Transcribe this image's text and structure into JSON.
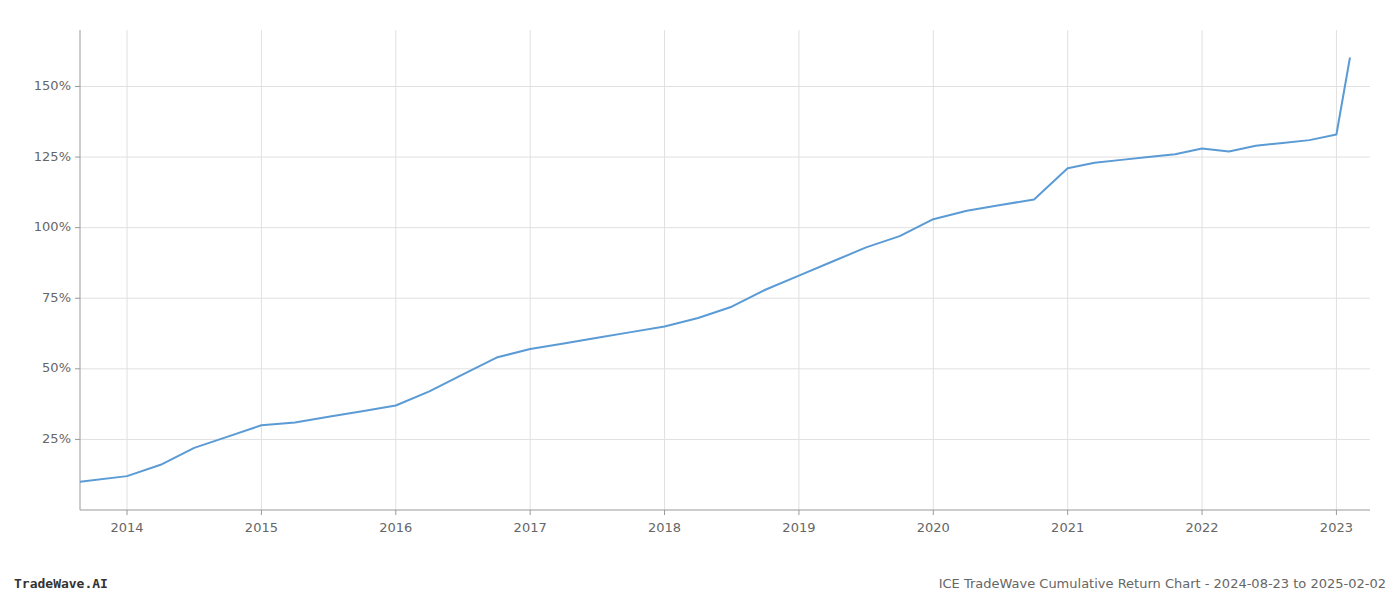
{
  "chart_data": {
    "type": "line",
    "title": "ICE TradeWave Cumulative Return Chart - 2024-08-23 to 2025-02-02",
    "annotations": [
      "TradeWave.AI"
    ],
    "x": [
      2013.65,
      2014.0,
      2014.25,
      2014.5,
      2014.75,
      2015.0,
      2015.25,
      2015.5,
      2015.75,
      2016.0,
      2016.25,
      2016.5,
      2016.75,
      2017.0,
      2017.25,
      2017.5,
      2017.75,
      2018.0,
      2018.25,
      2018.5,
      2018.75,
      2019.0,
      2019.25,
      2019.5,
      2019.75,
      2020.0,
      2020.25,
      2020.5,
      2020.75,
      2021.0,
      2021.2,
      2021.4,
      2021.6,
      2021.8,
      2022.0,
      2022.2,
      2022.4,
      2022.6,
      2022.8,
      2023.0,
      2023.1
    ],
    "values": [
      10,
      12,
      16,
      22,
      26,
      30,
      31,
      33,
      35,
      37,
      42,
      48,
      54,
      57,
      59,
      61,
      63,
      65,
      68,
      72,
      78,
      83,
      88,
      93,
      97,
      103,
      106,
      108,
      110,
      121,
      123,
      124,
      125,
      126,
      128,
      127,
      129,
      130,
      131,
      133,
      160
    ],
    "color": "#5b9bd5",
    "xlim": [
      2013.65,
      2023.25
    ],
    "ylim": [
      0,
      170
    ],
    "xticks": [
      2014,
      2015,
      2016,
      2017,
      2018,
      2019,
      2020,
      2021,
      2022,
      2023
    ],
    "yticks": [
      {
        "value": 25,
        "label": "25%"
      },
      {
        "value": 50,
        "label": "50%"
      },
      {
        "value": 75,
        "label": "75%"
      },
      {
        "value": 100,
        "label": "100%"
      },
      {
        "value": 125,
        "label": "125%"
      },
      {
        "value": 150,
        "label": "150%"
      }
    ],
    "grid": true
  }
}
